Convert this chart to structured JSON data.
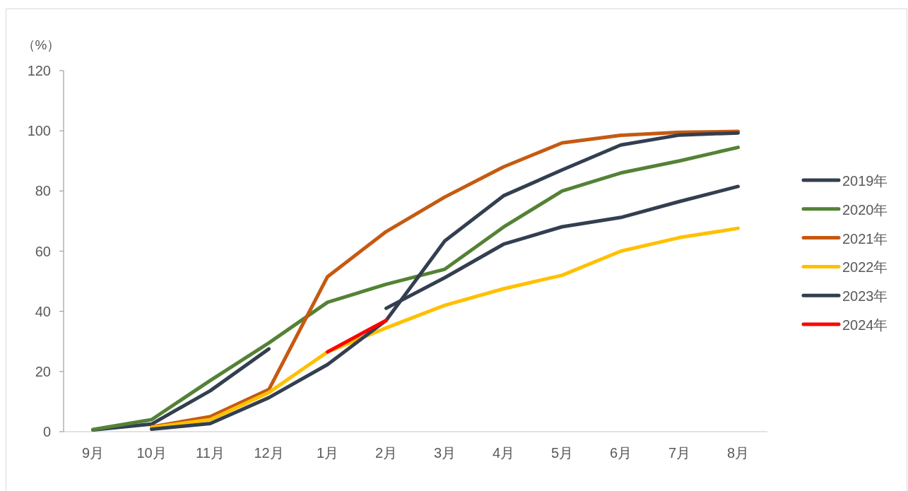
{
  "chart_data": {
    "type": "line",
    "ylabel": "（%）",
    "categories": [
      "9月",
      "10月",
      "11月",
      "12月",
      "1月",
      "2月",
      "3月",
      "4月",
      "5月",
      "6月",
      "7月",
      "8月"
    ],
    "series": [
      {
        "name": "2019年",
        "color": "#333f50",
        "values": [
          0.6,
          2.5,
          13.6,
          27.5,
          null,
          41,
          51.2,
          62.3,
          68.1,
          71.2,
          76.5,
          81.5
        ]
      },
      {
        "name": "2020年",
        "color": "#548235",
        "values": [
          0.7,
          4,
          17,
          29.5,
          43,
          49,
          54,
          68,
          80,
          86,
          90,
          94.5
        ]
      },
      {
        "name": "2021年",
        "color": "#c55a11",
        "values": [
          null,
          1.6,
          5,
          14,
          51.5,
          66.5,
          78,
          88,
          96,
          98.5,
          99.5,
          99.8
        ]
      },
      {
        "name": "2022年",
        "color": "#ffc000",
        "values": [
          null,
          1.4,
          4,
          13,
          26.5,
          34.5,
          42,
          47.5,
          52,
          60,
          64.5,
          67.6
        ]
      },
      {
        "name": "2023年",
        "color": "#333f50",
        "values": [
          null,
          0.8,
          2.7,
          11.3,
          22.3,
          37,
          63.4,
          78.4,
          87,
          95.3,
          98.6,
          99.3
        ]
      },
      {
        "name": "2024年",
        "color": "#ff0000",
        "values": [
          null,
          null,
          null,
          null,
          26.5,
          37,
          null,
          null,
          null,
          null,
          null,
          null
        ]
      }
    ],
    "ylim": [
      0,
      120
    ],
    "yticks": [
      0,
      20,
      40,
      60,
      80,
      100,
      120
    ],
    "legend": "right",
    "grid": false
  }
}
